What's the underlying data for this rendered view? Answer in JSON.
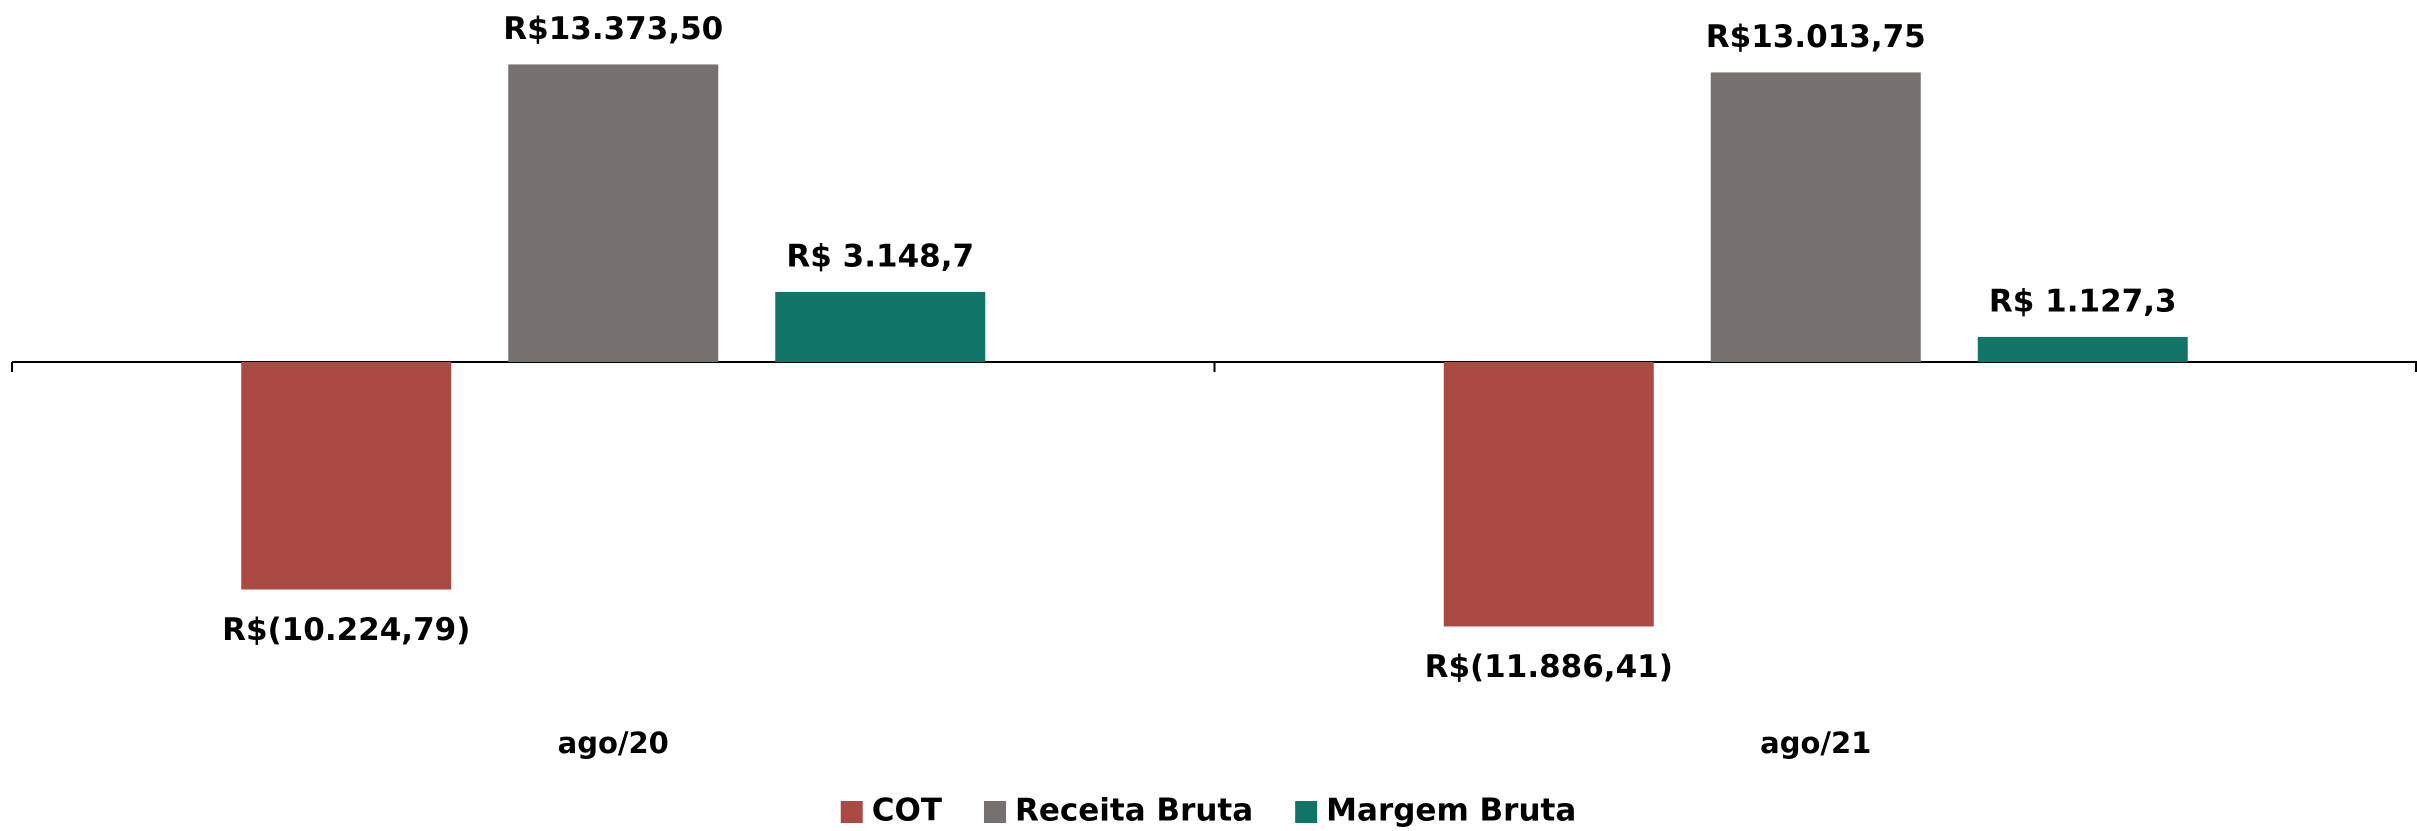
{
  "chart_data": {
    "type": "bar",
    "categories": [
      "ago/20",
      "ago/21"
    ],
    "series": [
      {
        "name": "COT",
        "color": "#ab4a43",
        "values": [
          -10224.79,
          -11886.41
        ],
        "value_labels": [
          "R$(10.224,79)",
          "R$(11.886,41)"
        ]
      },
      {
        "name": "Receita Bruta",
        "color": "#76716f",
        "values": [
          13373.5,
          13013.75
        ],
        "value_labels": [
          "R$13.373,50",
          "R$13.013,75"
        ]
      },
      {
        "name": "Margem Bruta",
        "color": "#117568",
        "values": [
          3148.7,
          1127.3
        ],
        "value_labels": [
          "R$ 3.148,7",
          "R$ 1.127,3"
        ]
      }
    ],
    "ylim": [
      -12000,
      14000
    ],
    "legend": "bottom"
  }
}
